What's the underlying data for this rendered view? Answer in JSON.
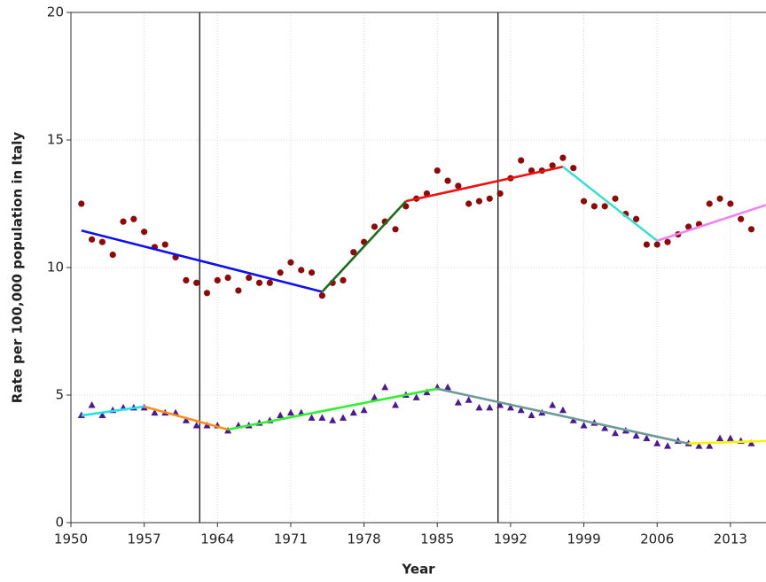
{
  "chart_data": {
    "type": "scatter",
    "xlabel": "Year",
    "ylabel": "Rate per 100,000 population in Italy",
    "xlim": [
      1950,
      2016.4
    ],
    "ylim": [
      0,
      20
    ],
    "xticks": [
      1950,
      1957,
      1964,
      1971,
      1978,
      1985,
      1992,
      1999,
      2006,
      2013
    ],
    "yticks": [
      0,
      5,
      10,
      15,
      20
    ],
    "grid": true,
    "vlines": [
      1962.3,
      1990.8
    ],
    "x": [
      1951,
      1952,
      1953,
      1954,
      1955,
      1956,
      1957,
      1958,
      1959,
      1960,
      1961,
      1962,
      1963,
      1964,
      1965,
      1966,
      1967,
      1968,
      1969,
      1970,
      1971,
      1972,
      1973,
      1974,
      1975,
      1976,
      1977,
      1978,
      1979,
      1980,
      1981,
      1982,
      1983,
      1984,
      1985,
      1986,
      1987,
      1988,
      1989,
      1990,
      1991,
      1992,
      1993,
      1994,
      1995,
      1996,
      1997,
      1998,
      1999,
      2000,
      2001,
      2002,
      2003,
      2004,
      2005,
      2006,
      2007,
      2008,
      2009,
      2010,
      2011,
      2012,
      2013,
      2014,
      2015
    ],
    "series": [
      {
        "color": "#8b0a0a",
        "marker": "circle",
        "values": [
          12.5,
          11.1,
          11.0,
          10.5,
          11.8,
          11.9,
          11.4,
          10.8,
          10.9,
          10.4,
          9.5,
          9.4,
          9.0,
          9.5,
          9.6,
          9.1,
          9.6,
          9.4,
          9.4,
          9.8,
          10.2,
          9.9,
          9.8,
          8.9,
          9.4,
          9.5,
          10.6,
          11.0,
          11.6,
          11.8,
          11.5,
          12.4,
          12.7,
          12.9,
          13.8,
          13.4,
          13.2,
          12.5,
          12.6,
          12.7,
          12.9,
          13.5,
          14.2,
          13.8,
          13.8,
          14.0,
          14.3,
          13.9,
          12.6,
          12.4,
          12.4,
          12.7,
          12.1,
          11.9,
          10.9,
          10.9,
          11.0,
          11.3,
          11.6,
          11.7,
          12.5,
          12.7,
          12.5,
          11.9,
          11.5
        ]
      },
      {
        "color": "#4b1a8c",
        "marker": "triangle",
        "values": [
          4.2,
          4.6,
          4.2,
          4.4,
          4.5,
          4.5,
          4.5,
          4.3,
          4.3,
          4.3,
          4.0,
          3.8,
          3.8,
          3.8,
          3.6,
          3.8,
          3.8,
          3.9,
          4.0,
          4.2,
          4.3,
          4.3,
          4.1,
          4.1,
          4.0,
          4.1,
          4.3,
          4.4,
          4.9,
          5.3,
          4.6,
          5.0,
          4.9,
          5.1,
          5.3,
          5.3,
          4.7,
          4.8,
          4.5,
          4.5,
          4.6,
          4.5,
          4.4,
          4.2,
          4.3,
          4.6,
          4.4,
          4.0,
          3.8,
          3.9,
          3.7,
          3.5,
          3.6,
          3.4,
          3.3,
          3.1,
          3.0,
          3.2,
          3.1,
          3.0,
          3.0,
          3.3,
          3.3,
          3.2,
          3.1
        ]
      }
    ],
    "segments": [
      {
        "color": "#1010ee",
        "x": [
          1951,
          1974
        ],
        "y": [
          11.45,
          9.05
        ]
      },
      {
        "color": "#1f6b1f",
        "x": [
          1974,
          1982
        ],
        "y": [
          9.05,
          12.6
        ]
      },
      {
        "color": "#ee1111",
        "x": [
          1982,
          1997
        ],
        "y": [
          12.6,
          13.95
        ]
      },
      {
        "color": "#40ddd0",
        "x": [
          1997,
          2006
        ],
        "y": [
          13.95,
          11.05
        ]
      },
      {
        "color": "#ee82ee",
        "x": [
          2006,
          2016.4
        ],
        "y": [
          11.05,
          12.45
        ]
      },
      {
        "color": "#22e0f0",
        "x": [
          1951,
          1957
        ],
        "y": [
          4.2,
          4.55
        ]
      },
      {
        "color": "#ff8c1a",
        "x": [
          1957,
          1965
        ],
        "y": [
          4.55,
          3.65
        ]
      },
      {
        "color": "#33ee33",
        "x": [
          1965,
          1985
        ],
        "y": [
          3.65,
          5.25
        ]
      },
      {
        "color": "#6e9a9a",
        "x": [
          1985,
          2009
        ],
        "y": [
          5.25,
          3.1
        ]
      },
      {
        "color": "#f5f500",
        "x": [
          2009,
          2016.4
        ],
        "y": [
          3.1,
          3.2
        ]
      }
    ]
  }
}
